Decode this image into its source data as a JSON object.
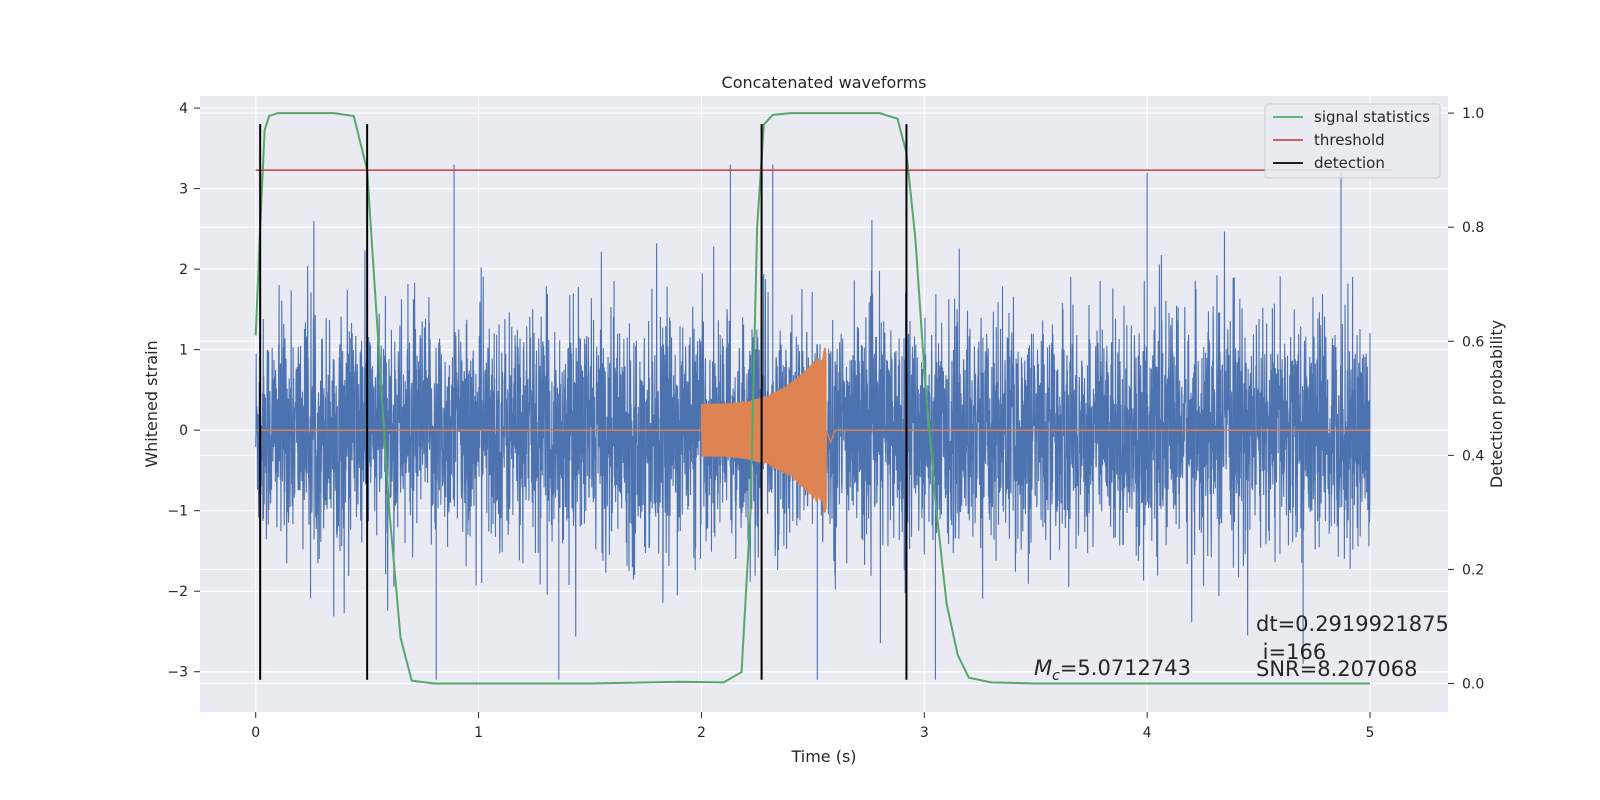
{
  "chart_data": {
    "type": "line",
    "title": "Concatenated waveforms",
    "xlabel": "Time (s)",
    "ylabel_left": "Whitened strain",
    "ylabel_right": "Detection probability",
    "xlim": [
      -0.25,
      5.35
    ],
    "ylim_left": [
      -3.5,
      4.15
    ],
    "ylim_right": [
      -0.05,
      1.03
    ],
    "x_ticks": [
      0,
      1,
      2,
      3,
      4,
      5
    ],
    "x_tick_labels": [
      "0",
      "1",
      "2",
      "3",
      "4",
      "5"
    ],
    "y_left_ticks": [
      -3,
      -2,
      -1,
      0,
      1,
      2,
      3,
      4
    ],
    "y_left_tick_labels": [
      "−3",
      "−2",
      "−1",
      "0",
      "1",
      "2",
      "3",
      "4"
    ],
    "y_right_ticks": [
      0.0,
      0.2,
      0.4,
      0.6,
      0.8,
      1.0
    ],
    "y_right_tick_labels": [
      "0.0",
      "0.2",
      "0.4",
      "0.6",
      "0.8",
      "1.0"
    ],
    "grid": true,
    "legend_position": "top-right",
    "legend": [
      "signal statistics",
      "threshold",
      "detection"
    ],
    "series": [
      {
        "name": "signal statistics",
        "axis": "right",
        "color": "#55a868",
        "x": [
          0,
          0.02,
          0.04,
          0.06,
          0.1,
          0.2,
          0.35,
          0.44,
          0.5,
          0.55,
          0.6,
          0.65,
          0.7,
          0.8,
          1.0,
          1.5,
          1.9,
          2.1,
          2.18,
          2.22,
          2.25,
          2.28,
          2.32,
          2.4,
          2.6,
          2.8,
          2.88,
          2.92,
          2.96,
          3.0,
          3.05,
          3.1,
          3.15,
          3.2,
          3.3,
          3.5,
          4.0,
          4.5,
          5.0
        ],
        "y": [
          0.61,
          0.8,
          0.97,
          0.995,
          1.0,
          1.0,
          1.0,
          0.995,
          0.9,
          0.6,
          0.3,
          0.08,
          0.005,
          0.0,
          0.0,
          0.0,
          0.003,
          0.002,
          0.02,
          0.3,
          0.8,
          0.98,
          0.997,
          1.0,
          1.0,
          1.0,
          0.99,
          0.93,
          0.78,
          0.55,
          0.32,
          0.14,
          0.05,
          0.01,
          0.002,
          0.0,
          0.0,
          0.0,
          0.0
        ]
      },
      {
        "name": "threshold",
        "axis": "right",
        "color": "#c44e52",
        "x": [
          0,
          5.1
        ],
        "y": [
          0.9,
          0.9
        ]
      },
      {
        "name": "detection",
        "axis": "left",
        "color": "#000000",
        "vlines_x": [
          0.02,
          0.5,
          2.27,
          2.92
        ],
        "ymin": -3.1,
        "ymax": 3.8
      },
      {
        "name": "",
        "axis": "left",
        "color": "#4c72b0",
        "type": "noise",
        "x_range": [
          0,
          5
        ],
        "amplitude_typical": 1.5,
        "amplitude_peak": 3.3,
        "spikes": [
          [
            0.89,
            3.3
          ],
          [
            0.81,
            -3.1
          ],
          [
            1.36,
            -3.1
          ],
          [
            2.13,
            3.3
          ],
          [
            2.32,
            3.3
          ],
          [
            2.52,
            -3.1
          ],
          [
            3.05,
            -3.1
          ],
          [
            4.0,
            3.2
          ],
          [
            4.87,
            3.2
          ],
          [
            4.7,
            -2.9
          ]
        ]
      },
      {
        "name": "",
        "axis": "left",
        "color": "#dd8452",
        "type": "chirp",
        "x_range": [
          0,
          5
        ],
        "chirp_start": 2.0,
        "chirp_end": 2.56,
        "amplitude_start": 0.33,
        "amplitude_end": 1.05
      }
    ],
    "annotations": [
      {
        "id": "mc",
        "prefix": "M",
        "subscript": "c",
        "text": "=5.0712743"
      },
      {
        "id": "dt",
        "text": "dt=0.2919921875"
      },
      {
        "id": "i",
        "text": " i=166"
      },
      {
        "id": "snr",
        "text": "SNR=8.207068"
      }
    ]
  }
}
